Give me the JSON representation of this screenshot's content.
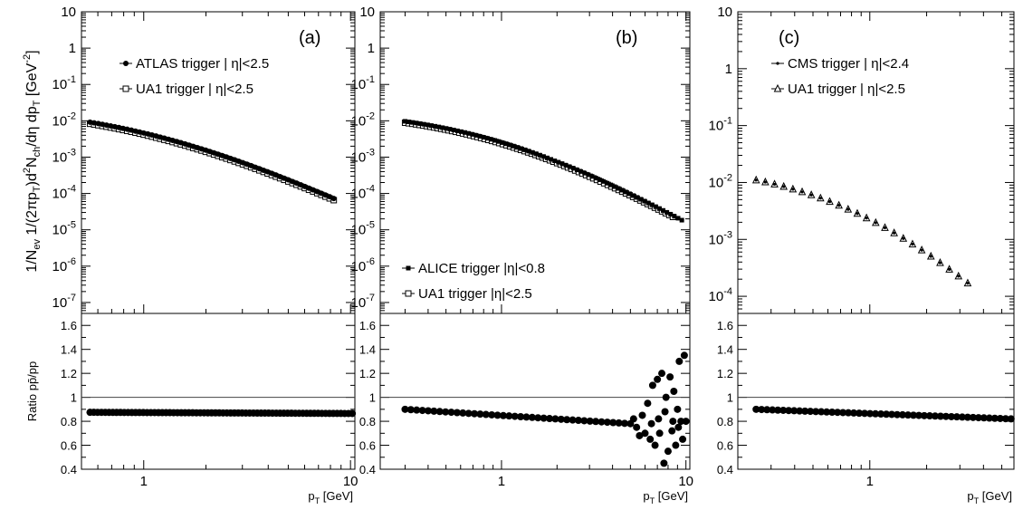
{
  "y_title_main": "1/N_ev 1/(2πp_T)d²N_ch/dη dp_T [GeV⁻²]",
  "y_title_ratio": "Ratio pp̄/pp",
  "chart_data": [
    {
      "type": "scatter",
      "panel_label": "(a)",
      "xlabel": "p_T [GeV]",
      "xscale": "log",
      "xlim": [
        0.5,
        10.5
      ],
      "x_tick_labels": [
        "1",
        "10"
      ],
      "top": {
        "yscale": "log",
        "ylim": [
          5e-08,
          10
        ],
        "y_tick_labels": [
          "10",
          "1",
          "10⁻¹",
          "10⁻²",
          "10⁻³",
          "10⁻⁴",
          "10⁻⁵",
          "10⁻⁶",
          "10⁻⁷"
        ],
        "legend_placement": "top-right",
        "series": [
          {
            "name": "ATLAS trigger | η|<2.5",
            "marker": "filled-circle",
            "function": "power",
            "c": 0.03,
            "n": 2.7,
            "s": 1,
            "x_from": 0.55,
            "x_to": 8.3,
            "count": 60
          },
          {
            "name": "UA1 trigger | η|<2.5",
            "marker": "open-square",
            "function": "power",
            "c": 0.027,
            "n": 2.7,
            "s": 1,
            "x_from": 0.55,
            "x_to": 8.3,
            "count": 60
          }
        ]
      },
      "bottom": {
        "ylim": [
          0.4,
          1.7
        ],
        "y_tick_labels": [
          "0.4",
          "0.6",
          "0.8",
          "1",
          "1.2",
          "1.4",
          "1.6"
        ],
        "reference_line": 1,
        "series": [
          {
            "marker": "filled-circle",
            "x_from": 0.55,
            "x_to": 10.2,
            "count": 70,
            "y_from": 0.875,
            "y_to": 0.865
          }
        ]
      }
    },
    {
      "type": "scatter",
      "panel_label": "(b)",
      "xlabel": "p_T [GeV]",
      "xscale": "log",
      "xlim": [
        0.22,
        10.5
      ],
      "x_tick_labels": [
        "1",
        "10"
      ],
      "top": {
        "yscale": "log",
        "ylim": [
          5e-08,
          10
        ],
        "y_tick_labels": [
          "10",
          "1",
          "10⁻¹",
          "10⁻²",
          "10⁻³",
          "10⁻⁴",
          "10⁻⁵",
          "10⁻⁶",
          "10⁻⁷"
        ],
        "legend_placement": "bottom-left",
        "series": [
          {
            "name": "ALICE trigger |η|<0.8",
            "marker": "filled-square",
            "function": "power",
            "c": 0.0164,
            "n": 2.9,
            "s": 0.9,
            "x_from": 0.3,
            "x_to": 9.5,
            "count": 75
          },
          {
            "name": "UA1 trigger |η|<2.5",
            "marker": "open-square",
            "function": "power",
            "c": 0.015,
            "n": 2.9,
            "s": 0.9,
            "x_from": 0.3,
            "x_to": 8.5,
            "count": 75
          }
        ]
      },
      "bottom": {
        "ylim": [
          0.4,
          1.7
        ],
        "y_tick_labels": [
          "0.4",
          "0.6",
          "0.8",
          "1",
          "1.2",
          "1.4",
          "1.6"
        ],
        "reference_line": 1,
        "series": [
          {
            "marker": "filled-circle",
            "x_from": 0.3,
            "x_to": 5.0,
            "count": 40,
            "y_from": 0.9,
            "y_to": 0.78
          },
          {
            "marker": "filled-circle",
            "points": [
              [
                5.2,
                0.82
              ],
              [
                5.4,
                0.75
              ],
              [
                5.6,
                0.68
              ],
              [
                5.8,
                0.85
              ],
              [
                6.0,
                0.7
              ],
              [
                6.2,
                0.95
              ],
              [
                6.4,
                0.65
              ],
              [
                6.6,
                1.1
              ],
              [
                6.8,
                0.6
              ],
              [
                7.0,
                1.15
              ],
              [
                7.2,
                0.7
              ],
              [
                7.4,
                1.2
              ],
              [
                7.6,
                0.45
              ],
              [
                7.8,
                1.0
              ],
              [
                8.0,
                0.55
              ],
              [
                8.2,
                1.17
              ],
              [
                8.4,
                0.72
              ],
              [
                8.6,
                1.05
              ],
              [
                8.8,
                0.6
              ],
              [
                9.0,
                0.9
              ],
              [
                9.2,
                1.3
              ],
              [
                9.4,
                0.8
              ],
              [
                9.6,
                0.65
              ],
              [
                9.8,
                1.35
              ],
              [
                10.0,
                0.8
              ],
              [
                6.5,
                0.78
              ],
              [
                7.1,
                0.82
              ],
              [
                7.7,
                0.88
              ],
              [
                8.5,
                0.8
              ],
              [
                9.1,
                0.75
              ]
            ]
          }
        ]
      }
    },
    {
      "type": "scatter",
      "panel_label": "(c)",
      "xlabel": "p_T [GeV]",
      "xscale": "log",
      "xlim": [
        0.2,
        5.8
      ],
      "x_tick_labels": [
        "1"
      ],
      "top": {
        "yscale": "log",
        "ylim": [
          5e-05,
          10
        ],
        "y_tick_labels": [
          "10",
          "1",
          "10⁻¹",
          "10⁻²",
          "10⁻³",
          "10⁻⁴"
        ],
        "legend_placement": "top-right",
        "series": [
          {
            "name": "CMS trigger | η|<2.4",
            "marker": "small-dot",
            "function": "power",
            "c": 0.0201,
            "n": 3.3,
            "s": 0.95,
            "x_from": 0.25,
            "x_to": 3.3,
            "count": 24
          },
          {
            "name": "UA1 trigger | η|<2.5",
            "marker": "open-triangle",
            "function": "power",
            "c": 0.0201,
            "n": 3.3,
            "s": 0.95,
            "x_from": 0.25,
            "x_to": 3.3,
            "count": 24
          }
        ]
      },
      "bottom": {
        "ylim": [
          0.4,
          1.7
        ],
        "y_tick_labels": [
          "0.4",
          "0.6",
          "0.8",
          "1",
          "1.2",
          "1.4",
          "1.6"
        ],
        "reference_line": 1,
        "series": [
          {
            "marker": "filled-circle",
            "x_from": 0.25,
            "x_to": 5.6,
            "count": 48,
            "y_from": 0.9,
            "y_to": 0.82
          }
        ]
      }
    }
  ]
}
